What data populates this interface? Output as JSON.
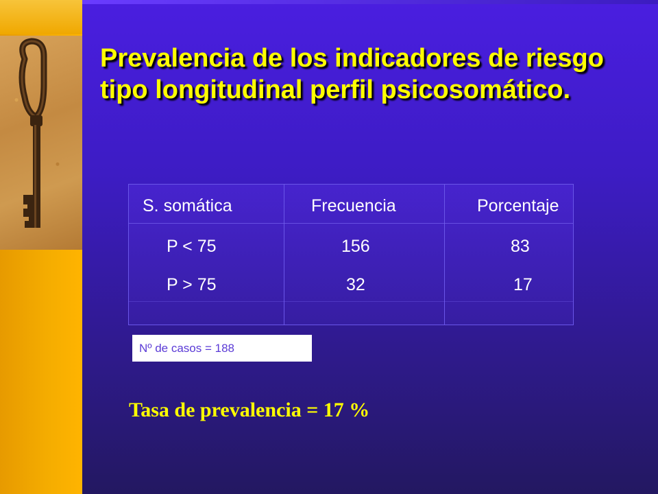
{
  "slide": {
    "title": "Prevalencia de los indicadores de riesgo tipo longitudinal perfil psicosomático."
  },
  "table": {
    "headers": [
      "S. somática",
      "Frecuencia",
      "Porcentaje"
    ],
    "rows": [
      [
        "P < 75",
        "156",
        "83"
      ],
      [
        "P > 75",
        "32",
        "17"
      ]
    ]
  },
  "note": {
    "cases": "Nº de casos = 188"
  },
  "summary": {
    "rate": "Tasa de prevalencia = 17 %"
  },
  "colors": {
    "background": "#3d1cc4",
    "left_bar": "#f5ad00",
    "title": "#ffff00",
    "table_text": "#ffffff",
    "note_text": "#5a3ad6"
  },
  "decoration": {
    "image": "key-icon"
  }
}
